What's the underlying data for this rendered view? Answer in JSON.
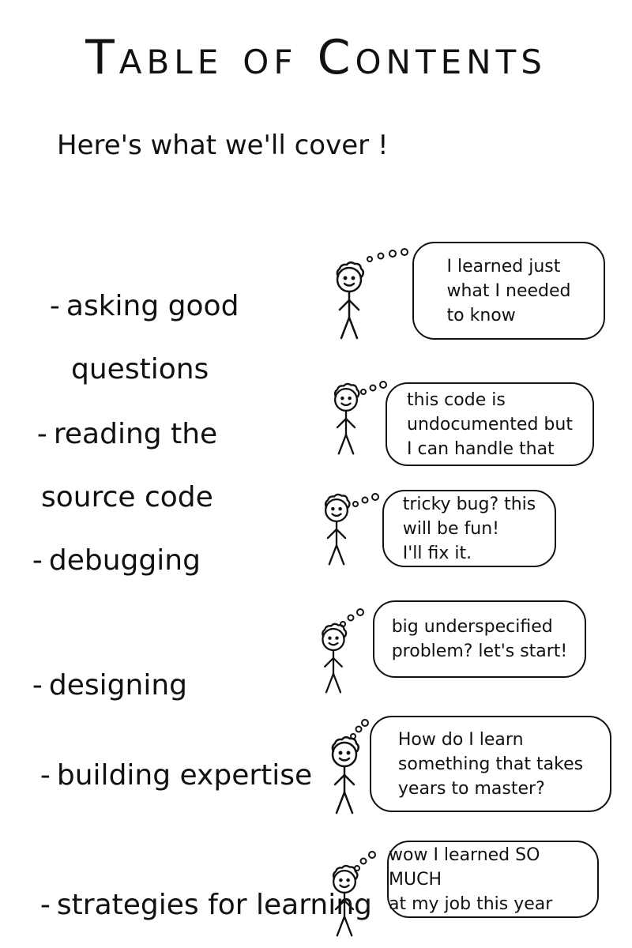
{
  "title": "Table of Contents",
  "subtitle": "Here's what we'll cover",
  "subtitle_mark": "!",
  "items": [
    {
      "topic_line1": "asking good",
      "topic_line2": "questions",
      "thought": "I learned just\nwhat I needed\nto know"
    },
    {
      "topic_line1": "reading the",
      "topic_line2": "source code",
      "thought": "this code is\nundocumented but\nI can handle that"
    },
    {
      "topic_line1": "debugging",
      "topic_line2": "",
      "thought": "tricky bug? this\nwill be fun!\nI'll fix it."
    },
    {
      "topic_line1": "designing",
      "topic_line2": "",
      "thought": "big underspecified\nproblem? let's start!"
    },
    {
      "topic_line1": "building expertise",
      "topic_line2": "",
      "thought": "How do I learn\nsomething that takes\nyears to master?"
    },
    {
      "topic_line1": "strategies for learning",
      "topic_line2": "",
      "thought": "wow I learned SO MUCH\nat my job this year"
    }
  ],
  "colors": {
    "ink": "#111111",
    "paper": "#ffffff"
  },
  "icons": {
    "figure": "stick-figure-icon",
    "thought_dots": "thought-dots-icon"
  }
}
